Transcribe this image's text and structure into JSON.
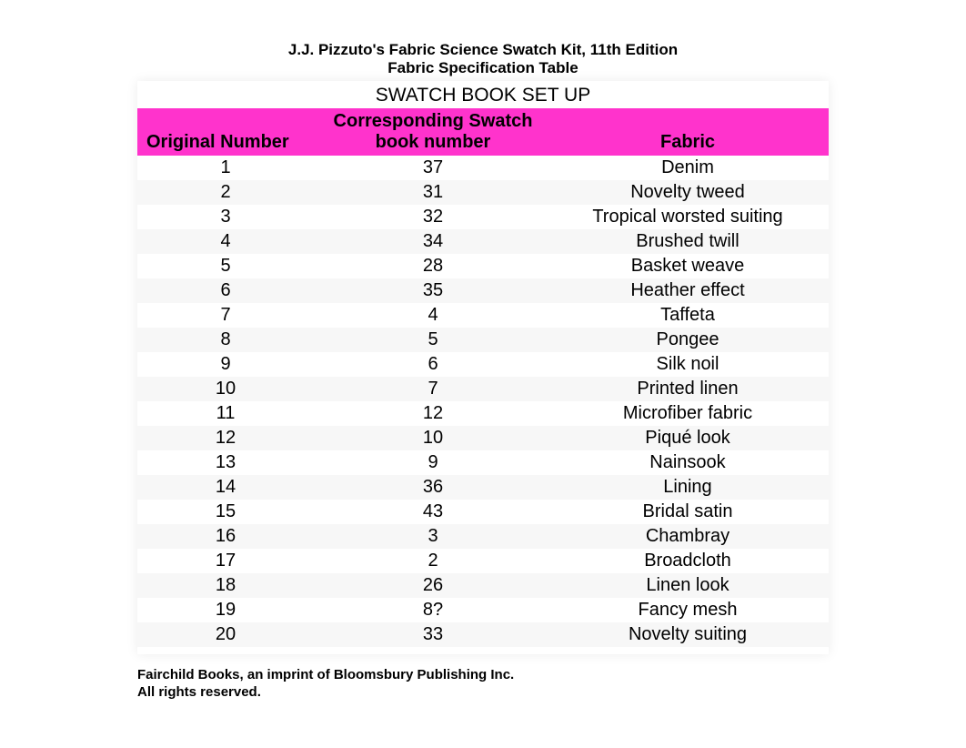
{
  "title": {
    "line1": "J.J. Pizzuto's Fabric Science Swatch Kit, 11th Edition",
    "line2": "Fabric Specification Table"
  },
  "section_heading": "SWATCH BOOK SET UP",
  "header_bg_color": "#ff33cc",
  "columns": {
    "col1": "Original Number",
    "col2_line1": "Corresponding Swatch",
    "col2_line2": "book number",
    "col3": "Fabric"
  },
  "rows": [
    {
      "orig": "1",
      "book": "37",
      "fabric": "Denim"
    },
    {
      "orig": "2",
      "book": "31",
      "fabric": "Novelty tweed"
    },
    {
      "orig": "3",
      "book": "32",
      "fabric": "Tropical worsted suiting"
    },
    {
      "orig": "4",
      "book": "34",
      "fabric": "Brushed twill"
    },
    {
      "orig": "5",
      "book": "28",
      "fabric": "Basket weave"
    },
    {
      "orig": "6",
      "book": "35",
      "fabric": "Heather effect"
    },
    {
      "orig": "7",
      "book": "4",
      "fabric": "Taffeta"
    },
    {
      "orig": "8",
      "book": "5",
      "fabric": "Pongee"
    },
    {
      "orig": "9",
      "book": "6",
      "fabric": "Silk noil"
    },
    {
      "orig": "10",
      "book": "7",
      "fabric": "Printed linen"
    },
    {
      "orig": "11",
      "book": "12",
      "fabric": "Microfiber fabric"
    },
    {
      "orig": "12",
      "book": "10",
      "fabric": "Piqué look"
    },
    {
      "orig": "13",
      "book": "9",
      "fabric": "Nainsook"
    },
    {
      "orig": "14",
      "book": "36",
      "fabric": "Lining"
    },
    {
      "orig": "15",
      "book": "43",
      "fabric": "Bridal satin"
    },
    {
      "orig": "16",
      "book": "3",
      "fabric": "Chambray"
    },
    {
      "orig": "17",
      "book": "2",
      "fabric": "Broadcloth"
    },
    {
      "orig": "18",
      "book": "26",
      "fabric": "Linen look"
    },
    {
      "orig": "19",
      "book": "8?",
      "fabric": "Fancy mesh"
    },
    {
      "orig": "20",
      "book": "33",
      "fabric": "Novelty suiting"
    }
  ],
  "footer": {
    "line1": "Fairchild Books, an imprint of Bloomsbury Publishing Inc.",
    "line2": "All rights reserved."
  }
}
